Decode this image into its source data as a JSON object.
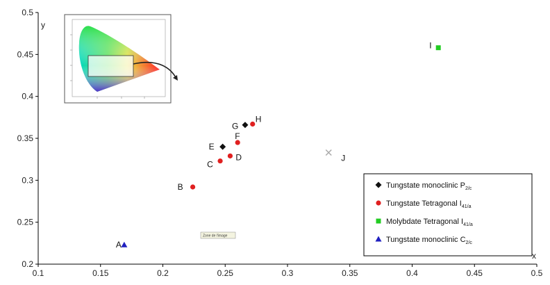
{
  "chart_data": {
    "type": "scatter",
    "xlabel": "x",
    "ylabel": "y",
    "xlim": [
      0.1,
      0.5
    ],
    "ylim": [
      0.2,
      0.5
    ],
    "x_ticks": [
      "0.1",
      "0.15",
      "0.2",
      "0.25",
      "0.3",
      "0.35",
      "0.4",
      "0.45",
      "0.5"
    ],
    "y_ticks": [
      "0.2",
      "0.25",
      "0.3",
      "0.35",
      "0.4",
      "0.45",
      "0.5"
    ],
    "grid": false,
    "legend_position": "bottom-right",
    "series": [
      {
        "name": "Tungstate monoclinic P2/c",
        "legend_main": "Tungstate monoclinic P",
        "legend_sub": "2/c",
        "marker": "diamond",
        "color": "#111111",
        "points": [
          {
            "label": "E",
            "x": 0.248,
            "y": 0.34
          },
          {
            "label": "G",
            "x": 0.266,
            "y": 0.366
          }
        ]
      },
      {
        "name": "Tungstate Tetragonal I41/a",
        "legend_main": "Tungstate Tetragonal I",
        "legend_sub": "41/a",
        "marker": "circle",
        "color": "#e02020",
        "points": [
          {
            "label": "B",
            "x": 0.224,
            "y": 0.292
          },
          {
            "label": "C",
            "x": 0.246,
            "y": 0.323
          },
          {
            "label": "D",
            "x": 0.254,
            "y": 0.329
          },
          {
            "label": "F",
            "x": 0.26,
            "y": 0.345
          },
          {
            "label": "H",
            "x": 0.272,
            "y": 0.367
          }
        ]
      },
      {
        "name": "Molybdate Tetragonal I41/a",
        "legend_main": "Molybdate Tetragonal I",
        "legend_sub": "41/a",
        "marker": "square",
        "color": "#22cc22",
        "points": [
          {
            "label": "I",
            "x": 0.421,
            "y": 0.458
          }
        ]
      },
      {
        "name": "Tungstate monoclinic C2/c",
        "legend_main": "Tungstate monoclinic C",
        "legend_sub": "2/c",
        "marker": "triangle",
        "color": "#2020c0",
        "points": [
          {
            "label": "A",
            "x": 0.169,
            "y": 0.223
          }
        ]
      }
    ],
    "extra_points": [
      {
        "label": "J",
        "x": 0.333,
        "y": 0.333,
        "marker": "x",
        "color": "#aaaaaa"
      }
    ],
    "annotation": "Zone de l'image",
    "inset": "CIE chromaticity diagram"
  }
}
